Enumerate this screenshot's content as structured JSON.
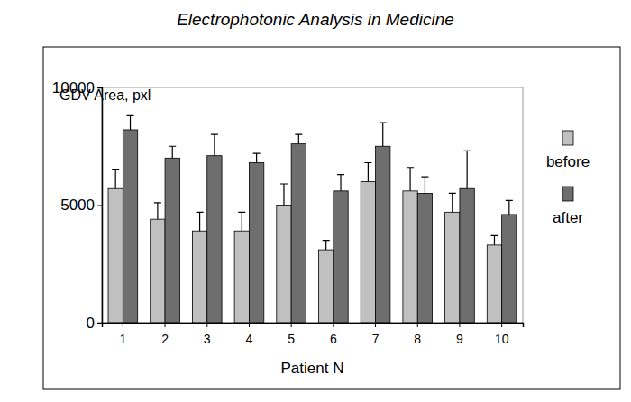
{
  "chart_data": {
    "type": "bar",
    "title": "Electrophotonic Analysis in Medicine",
    "y_label": "GDV Area, pxl",
    "x_label": "Patient N",
    "categories": [
      "1",
      "2",
      "3",
      "4",
      "5",
      "6",
      "7",
      "8",
      "9",
      "10"
    ],
    "series": [
      {
        "name": "before",
        "color": "#c0c0c0",
        "values": [
          5700,
          4400,
          3900,
          3900,
          5000,
          3100,
          6000,
          5600,
          4700,
          3300
        ],
        "errors": [
          800,
          700,
          800,
          800,
          900,
          400,
          800,
          1000,
          800,
          400
        ]
      },
      {
        "name": "after",
        "color": "#6e6e6e",
        "values": [
          8200,
          7000,
          7100,
          6800,
          7600,
          5600,
          7500,
          5500,
          5700,
          4600
        ],
        "errors": [
          600,
          500,
          900,
          400,
          400,
          700,
          1000,
          700,
          1600,
          600
        ]
      }
    ],
    "ylim": [
      0,
      10000
    ],
    "yticks": [
      0,
      5000,
      10000
    ],
    "grid": false,
    "legend": "right"
  }
}
